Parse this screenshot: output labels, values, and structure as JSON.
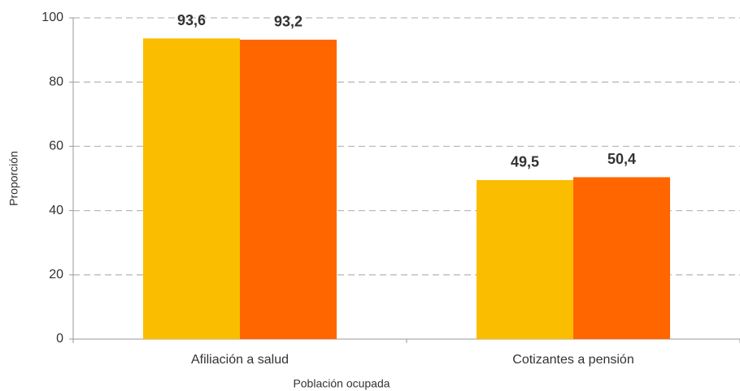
{
  "chart_data": {
    "type": "bar",
    "x_label": "Población ocupada",
    "y_label": "Proporción",
    "categories": [
      "Afiliación a salud",
      "Cotizantes a pensión"
    ],
    "series": [
      {
        "color": "#fbbd00",
        "values": [
          93.6,
          49.5
        ],
        "value_labels": [
          "93,6",
          "49,5"
        ]
      },
      {
        "color": "#ff6600",
        "values": [
          93.2,
          50.4
        ],
        "value_labels": [
          "93,2",
          "50,4"
        ]
      }
    ],
    "ylim": [
      0,
      100
    ],
    "yticks": [
      0,
      20,
      40,
      60,
      80,
      100
    ],
    "grid": true
  }
}
